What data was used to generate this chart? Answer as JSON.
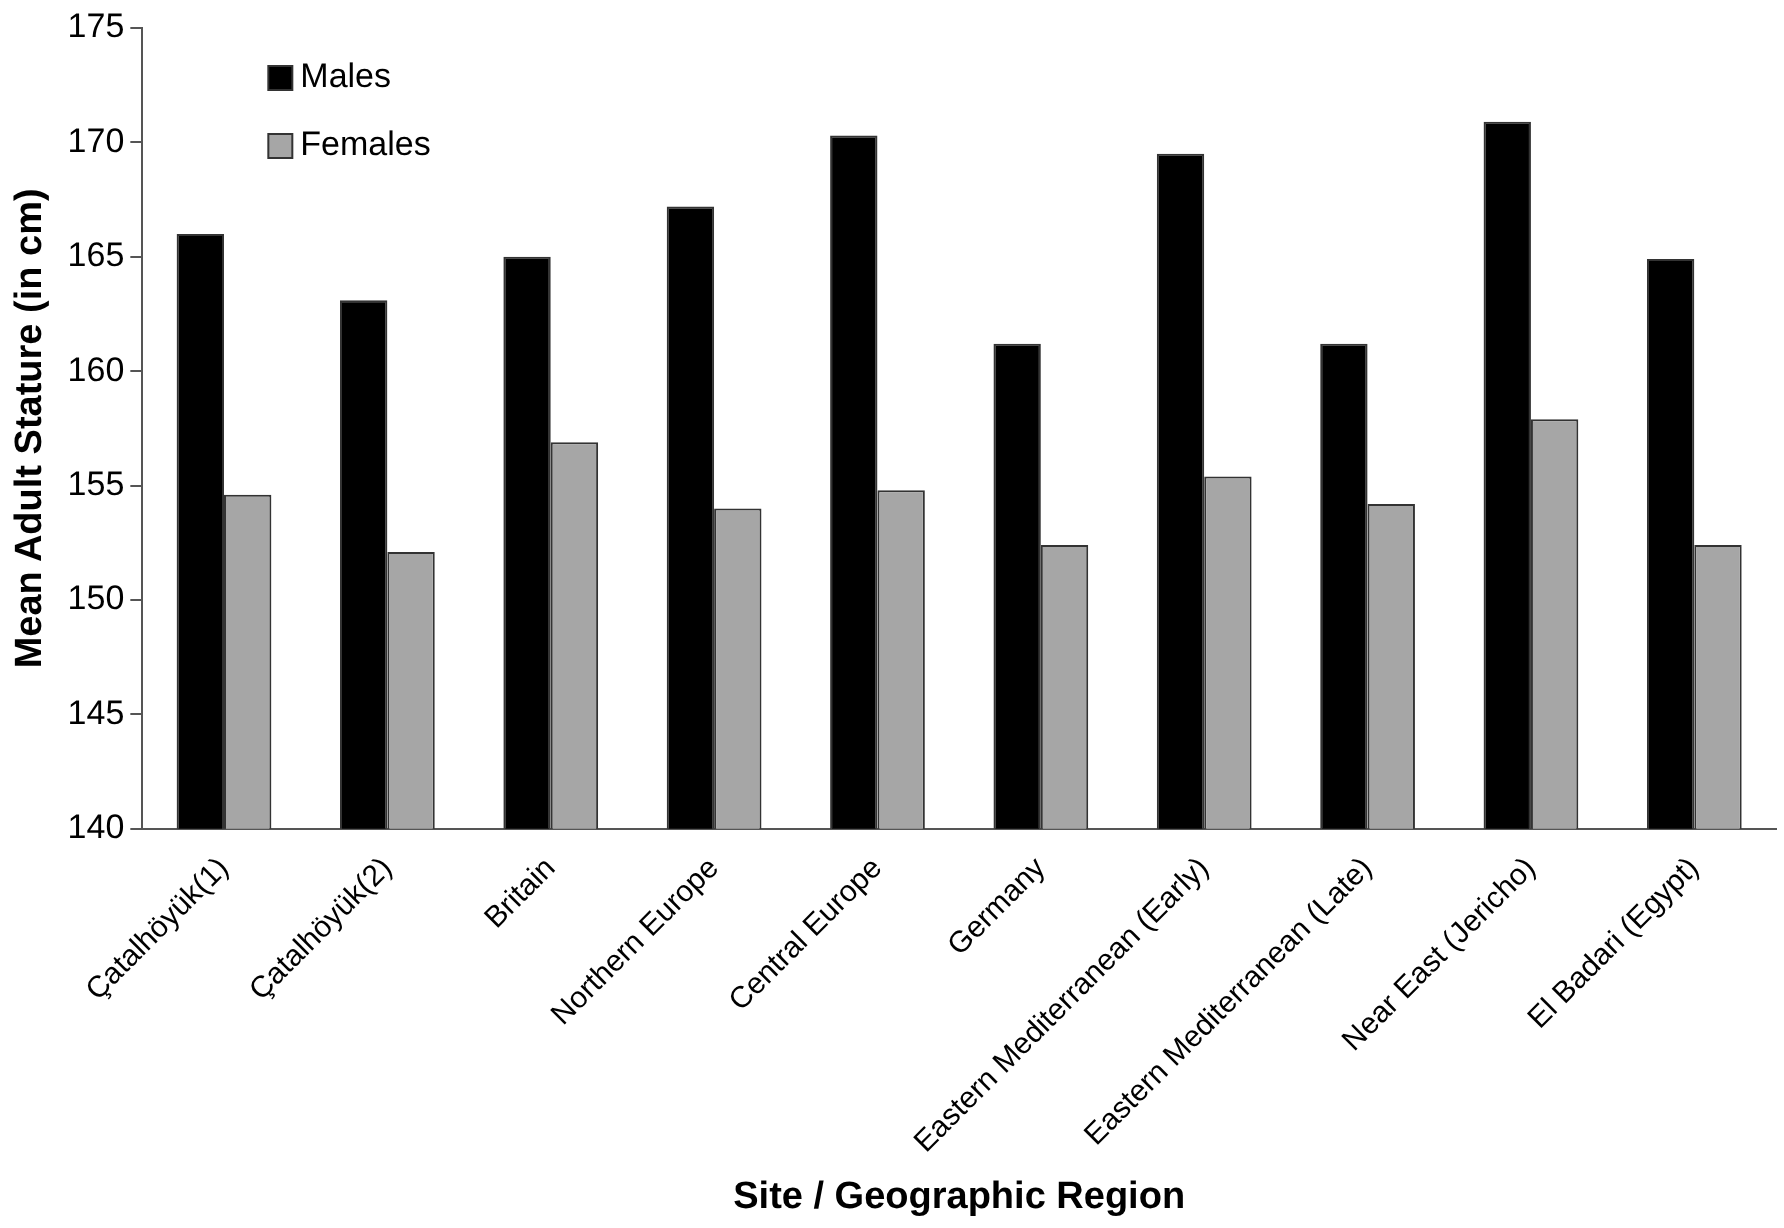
{
  "chart_data": {
    "type": "bar",
    "xlabel": "Site / Geographic Region",
    "ylabel": "Mean Adult Stature (in cm)",
    "categories": [
      "Çatalhöyük(1)",
      "Çatalhöyük(2)",
      "Britain",
      "Northern Europe",
      "Central Europe",
      "Germany",
      "Eastern Mediterranean (Early)",
      "Eastern Mediterranean (Late)",
      "Near East (Jericho)",
      "El Badari (Egypt)"
    ],
    "series": [
      {
        "name": "Males",
        "color": "#000000",
        "values": [
          166.0,
          163.1,
          165.0,
          167.2,
          170.3,
          161.2,
          169.5,
          161.2,
          170.9,
          164.9
        ]
      },
      {
        "name": "Females",
        "color": "#a6a6a6",
        "values": [
          154.6,
          152.1,
          156.9,
          154.0,
          154.8,
          152.4,
          155.4,
          154.2,
          157.9,
          152.4
        ]
      }
    ],
    "ylim": [
      140,
      175
    ],
    "yticks": [
      140,
      145,
      150,
      155,
      160,
      165,
      170,
      175
    ],
    "grid": false,
    "legend": "top left"
  }
}
